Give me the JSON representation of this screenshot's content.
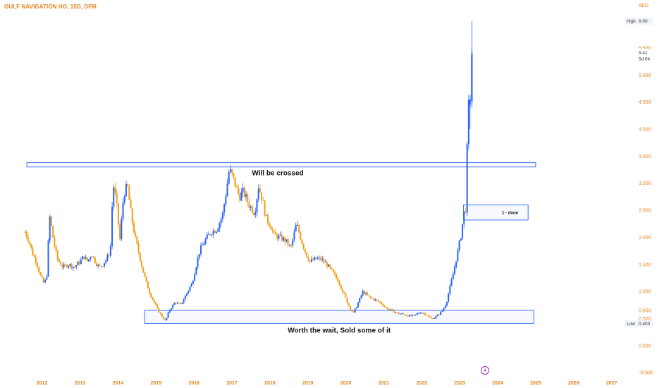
{
  "header": {
    "title": "GULF NAVIGATION HO, 15D, DFM",
    "currency": "AED"
  },
  "colors": {
    "up": "#2962ff",
    "down": "#f39c12",
    "box": "#2962ff",
    "axis_text": "#e8821e",
    "pane_icon": "#9c27b0"
  },
  "chart_data": {
    "type": "candlestick",
    "title": "GULF NAVIGATION HO, 15D, DFM",
    "xlabel": "",
    "ylabel": "",
    "x_ticks": [
      "2012",
      "2013",
      "2014",
      "2015",
      "2016",
      "2017",
      "2018",
      "2019",
      "2020",
      "2021",
      "2022",
      "2023",
      "2024",
      "2025",
      "2026",
      "2027"
    ],
    "y_ticks": [
      "-0.500",
      "0.000",
      "0.500",
      "1.000",
      "1.500",
      "2.000",
      "2.500",
      "3.000",
      "3.500",
      "4.000",
      "4.500",
      "5.000",
      "5.500"
    ],
    "ylim": [
      -0.55,
      6.1
    ],
    "xlim": [
      2011.45,
      2027.6
    ],
    "price_path": [
      [
        2011.55,
        2.1
      ],
      [
        2011.65,
        1.95
      ],
      [
        2011.75,
        1.7
      ],
      [
        2011.85,
        1.55
      ],
      [
        2011.95,
        1.3
      ],
      [
        2012.05,
        1.15
      ],
      [
        2012.12,
        1.25
      ],
      [
        2012.2,
        2.4
      ],
      [
        2012.3,
        1.95
      ],
      [
        2012.4,
        1.6
      ],
      [
        2012.55,
        1.45
      ],
      [
        2012.7,
        1.5
      ],
      [
        2012.85,
        1.45
      ],
      [
        2013.0,
        1.55
      ],
      [
        2013.1,
        1.65
      ],
      [
        2013.2,
        1.55
      ],
      [
        2013.3,
        1.7
      ],
      [
        2013.4,
        1.55
      ],
      [
        2013.5,
        1.45
      ],
      [
        2013.6,
        1.5
      ],
      [
        2013.7,
        1.6
      ],
      [
        2013.8,
        1.75
      ],
      [
        2013.87,
        3.0
      ],
      [
        2013.95,
        2.7
      ],
      [
        2014.05,
        1.95
      ],
      [
        2014.15,
        2.8
      ],
      [
        2014.25,
        2.95
      ],
      [
        2014.35,
        2.4
      ],
      [
        2014.45,
        2.0
      ],
      [
        2014.55,
        1.7
      ],
      [
        2014.65,
        1.4
      ],
      [
        2014.75,
        1.15
      ],
      [
        2014.85,
        0.95
      ],
      [
        2014.95,
        0.8
      ],
      [
        2015.05,
        0.65
      ],
      [
        2015.15,
        0.55
      ],
      [
        2015.25,
        0.45
      ],
      [
        2015.35,
        0.65
      ],
      [
        2015.5,
        0.8
      ],
      [
        2015.65,
        0.75
      ],
      [
        2015.8,
        0.95
      ],
      [
        2015.95,
        1.15
      ],
      [
        2016.05,
        1.45
      ],
      [
        2016.15,
        1.75
      ],
      [
        2016.3,
        1.95
      ],
      [
        2016.45,
        2.1
      ],
      [
        2016.6,
        2.15
      ],
      [
        2016.75,
        2.4
      ],
      [
        2016.85,
        2.85
      ],
      [
        2016.93,
        3.25
      ],
      [
        2017.0,
        3.15
      ],
      [
        2017.1,
        2.95
      ],
      [
        2017.2,
        2.75
      ],
      [
        2017.3,
        2.85
      ],
      [
        2017.45,
        2.6
      ],
      [
        2017.6,
        2.45
      ],
      [
        2017.7,
        2.95
      ],
      [
        2017.8,
        2.7
      ],
      [
        2017.9,
        2.35
      ],
      [
        2018.0,
        2.25
      ],
      [
        2018.1,
        2.05
      ],
      [
        2018.25,
        2.0
      ],
      [
        2018.4,
        1.95
      ],
      [
        2018.55,
        1.8
      ],
      [
        2018.7,
        2.25
      ],
      [
        2018.85,
        1.9
      ],
      [
        2018.95,
        1.7
      ],
      [
        2019.05,
        1.55
      ],
      [
        2019.2,
        1.6
      ],
      [
        2019.35,
        1.6
      ],
      [
        2019.5,
        1.5
      ],
      [
        2019.65,
        1.35
      ],
      [
        2019.8,
        1.2
      ],
      [
        2019.95,
        0.95
      ],
      [
        2020.1,
        0.7
      ],
      [
        2020.2,
        0.6
      ],
      [
        2020.3,
        0.75
      ],
      [
        2020.45,
        1.0
      ],
      [
        2020.6,
        0.9
      ],
      [
        2020.75,
        0.85
      ],
      [
        2020.9,
        0.8
      ],
      [
        2021.05,
        0.7
      ],
      [
        2021.2,
        0.65
      ],
      [
        2021.35,
        0.6
      ],
      [
        2021.5,
        0.58
      ],
      [
        2021.65,
        0.55
      ],
      [
        2021.8,
        0.55
      ],
      [
        2021.95,
        0.62
      ],
      [
        2022.05,
        0.6
      ],
      [
        2022.15,
        0.55
      ],
      [
        2022.25,
        0.5
      ],
      [
        2022.35,
        0.52
      ],
      [
        2022.45,
        0.58
      ],
      [
        2022.55,
        0.65
      ],
      [
        2022.65,
        0.8
      ],
      [
        2022.75,
        1.1
      ],
      [
        2022.85,
        1.4
      ],
      [
        2022.95,
        1.75
      ],
      [
        2023.05,
        2.1
      ],
      [
        2023.1,
        2.45
      ],
      [
        2023.15,
        2.45
      ],
      [
        2023.18,
        3.2
      ],
      [
        2023.22,
        4.4
      ],
      [
        2023.27,
        4.5
      ],
      [
        2023.32,
        5.41
      ]
    ],
    "labels": {
      "high_label": "High",
      "high_value": "6.00",
      "current_value": "5.41",
      "countdown": "5d 6h",
      "low_label": "Low",
      "low_value": "0.403",
      "low_ref_value": "0.650"
    },
    "annotations": {
      "top_box": {
        "text": "Will be crossed",
        "x1": 2011.6,
        "x2": 2025.0,
        "y1": 3.3,
        "y2": 3.38
      },
      "bottom_box": {
        "text": "Worth the wait, Sold some of it",
        "x1": 2014.7,
        "x2": 2024.95,
        "y1": 0.41,
        "y2": 0.65
      },
      "mid_box": {
        "text": "1 - done",
        "x1": 2023.1,
        "x2": 2024.8,
        "y1": 2.32,
        "y2": 2.6
      }
    }
  }
}
